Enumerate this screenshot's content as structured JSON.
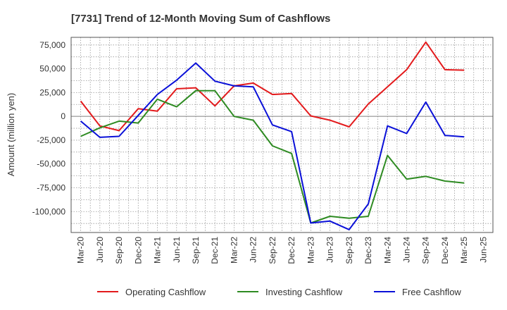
{
  "chart_data": {
    "type": "line",
    "title": "[7731]  Trend of 12-Month Moving Sum of Cashflows",
    "xlabel": "",
    "ylabel": "Amount (million yen)",
    "categories": [
      "Mar-20",
      "Jun-20",
      "Sep-20",
      "Dec-20",
      "Mar-21",
      "Jun-21",
      "Sep-21",
      "Dec-21",
      "Mar-22",
      "Jun-22",
      "Sep-22",
      "Dec-22",
      "Mar-23",
      "Jun-23",
      "Sep-23",
      "Dec-23",
      "Mar-24",
      "Jun-24",
      "Sep-24",
      "Dec-24",
      "Mar-25",
      "Jun-25"
    ],
    "ylim": [
      -122000,
      83000
    ],
    "yticks": [
      75000,
      50000,
      25000,
      0,
      -25000,
      -50000,
      -75000,
      -100000
    ],
    "ytick_labels": [
      "75,000",
      "50,000",
      "25,000",
      "0",
      "-25,000",
      "-50,000",
      "-75,000",
      "-100,000"
    ],
    "grid": true,
    "legend_position": "bottom",
    "series": [
      {
        "name": "Operating Cashflow",
        "color": "#e31a1c",
        "values": [
          16000,
          -10000,
          -15000,
          8000,
          5500,
          29000,
          30000,
          11000,
          32000,
          35000,
          23000,
          24000,
          500,
          -4000,
          -11000,
          13000,
          31000,
          49000,
          78000,
          49000,
          48500,
          null
        ]
      },
      {
        "name": "Investing Cashflow",
        "color": "#2e8b22",
        "values": [
          -21000,
          -12000,
          -5000,
          -7000,
          18000,
          10000,
          27000,
          27000,
          0,
          -4000,
          -31000,
          -39000,
          -112000,
          -105000,
          -107000,
          -105000,
          -41000,
          -66000,
          -63000,
          -68000,
          -70000,
          null
        ]
      },
      {
        "name": "Free Cashflow",
        "color": "#0a10d8",
        "values": [
          -5000,
          -22000,
          -21000,
          1000,
          23000,
          38000,
          56000,
          37000,
          32000,
          31000,
          -9000,
          -16000,
          -112000,
          -110000,
          -119000,
          -92000,
          -10000,
          -18000,
          15000,
          -20000,
          -21500,
          null
        ]
      }
    ]
  }
}
